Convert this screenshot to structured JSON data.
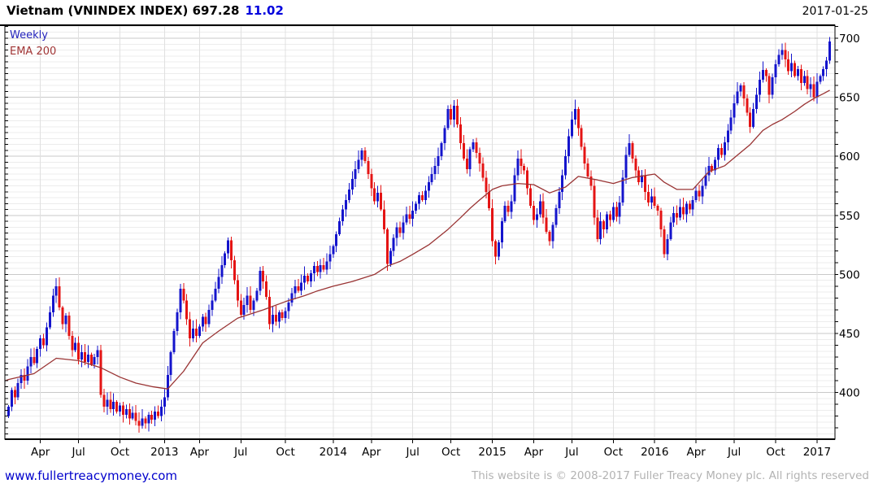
{
  "header": {
    "title": "Vietnam (VNINDEX INDEX) 697.28",
    "change": "11.02",
    "date": "2017-01-25"
  },
  "legend": {
    "series1": "Weekly",
    "series2": "EMA 200"
  },
  "footer": {
    "site": "www.fullertreacymoney.com",
    "copyright": "This website is © 2008-2017 Fuller Treacy Money plc. All rights reserved"
  },
  "colors": {
    "up": "#1414cc",
    "down": "#e41414",
    "ema": "#993333",
    "change_text": "#0000dd",
    "link": "#0000cc",
    "copyright_text": "#b3b3b3",
    "grid_major": "#c9c9c9",
    "grid_minor": "#ececec",
    "grid_vertical": "#e0e0e0",
    "border": "#000000"
  },
  "chart_data": {
    "type": "candlestick",
    "title": "Vietnam (VNINDEX INDEX)",
    "interval": "Weekly",
    "overlay": "EMA 200",
    "last_close": 697.28,
    "change": 11.02,
    "as_of": "2017-01-25",
    "y_axis": {
      "side": "right",
      "min": 360,
      "max": 710,
      "major_step": 50,
      "minor_step": 5,
      "ticks": [
        400,
        450,
        500,
        550,
        600,
        650,
        700
      ]
    },
    "x_axis": {
      "ticks": [
        {
          "label": "Apr",
          "week": 10
        },
        {
          "label": "Jul",
          "week": 22
        },
        {
          "label": "Oct",
          "week": 35
        },
        {
          "label": "2013",
          "week": 49
        },
        {
          "label": "Apr",
          "week": 60
        },
        {
          "label": "Jul",
          "week": 73
        },
        {
          "label": "Oct",
          "week": 87
        },
        {
          "label": "2014",
          "week": 102
        },
        {
          "label": "Apr",
          "week": 114
        },
        {
          "label": "Jul",
          "week": 127
        },
        {
          "label": "Oct",
          "week": 139
        },
        {
          "label": "2015",
          "week": 152
        },
        {
          "label": "Apr",
          "week": 165
        },
        {
          "label": "Jul",
          "week": 177
        },
        {
          "label": "Oct",
          "week": 190
        },
        {
          "label": "2016",
          "week": 203
        },
        {
          "label": "Apr",
          "week": 216
        },
        {
          "label": "Jul",
          "week": 228
        },
        {
          "label": "Oct",
          "week": 241
        },
        {
          "label": "2017",
          "week": 254
        }
      ]
    },
    "first_open": 380,
    "weekly_closes": [
      388,
      402,
      396,
      408,
      415,
      410,
      422,
      430,
      425,
      437,
      446,
      440,
      455,
      468,
      482,
      490,
      472,
      458,
      465,
      448,
      436,
      442,
      428,
      434,
      426,
      432,
      424,
      430,
      436,
      398,
      388,
      394,
      386,
      392,
      384,
      389,
      381,
      386,
      378,
      383,
      376,
      372,
      378,
      374,
      381,
      377,
      384,
      380,
      388,
      396,
      415,
      434,
      452,
      468,
      488,
      478,
      462,
      446,
      454,
      448,
      456,
      464,
      458,
      470,
      478,
      488,
      498,
      508,
      518,
      529,
      512,
      495,
      478,
      466,
      474,
      482,
      470,
      478,
      486,
      503,
      494,
      481,
      458,
      466,
      460,
      468,
      463,
      469,
      476,
      484,
      490,
      486,
      493,
      499,
      494,
      501,
      507,
      502,
      508,
      504,
      511,
      517,
      524,
      534,
      545,
      555,
      563,
      572,
      581,
      589,
      597,
      605,
      596,
      585,
      573,
      562,
      569,
      555,
      538,
      509,
      520,
      531,
      540,
      535,
      544,
      551,
      547,
      554,
      560,
      567,
      563,
      571,
      578,
      585,
      592,
      600,
      611,
      624,
      640,
      631,
      643,
      627,
      611,
      598,
      589,
      606,
      612,
      603,
      594,
      582,
      570,
      556,
      528,
      515,
      527,
      545,
      558,
      553,
      562,
      584,
      598,
      592,
      588,
      573,
      558,
      546,
      551,
      562,
      548,
      536,
      528,
      542,
      556,
      570,
      584,
      600,
      617,
      631,
      640,
      624,
      608,
      594,
      583,
      575,
      548,
      530,
      545,
      538,
      551,
      546,
      557,
      549,
      561,
      582,
      601,
      611,
      598,
      588,
      578,
      584,
      570,
      561,
      566,
      558,
      554,
      538,
      517,
      530,
      544,
      552,
      548,
      557,
      551,
      560,
      555,
      563,
      571,
      566,
      575,
      584,
      592,
      588,
      597,
      607,
      601,
      612,
      622,
      633,
      645,
      655,
      660,
      649,
      637,
      625,
      640,
      652,
      665,
      673,
      668,
      652,
      667,
      678,
      686,
      690,
      682,
      672,
      679,
      668,
      674,
      662,
      668,
      657,
      661,
      650,
      663,
      668,
      674,
      681,
      697.28
    ],
    "ema200": [
      [
        -1,
        410
      ],
      [
        0,
        411
      ],
      [
        8,
        416
      ],
      [
        15,
        429
      ],
      [
        22,
        427
      ],
      [
        29,
        421
      ],
      [
        35,
        413
      ],
      [
        40,
        408
      ],
      [
        45,
        405
      ],
      [
        50,
        403
      ],
      [
        55,
        418
      ],
      [
        61,
        442
      ],
      [
        66,
        452
      ],
      [
        72,
        463
      ],
      [
        80,
        470
      ],
      [
        87,
        477
      ],
      [
        93,
        482
      ],
      [
        97,
        486
      ],
      [
        102,
        490
      ],
      [
        108,
        494
      ],
      [
        115,
        500
      ],
      [
        119,
        507
      ],
      [
        123,
        511
      ],
      [
        127,
        517
      ],
      [
        132,
        525
      ],
      [
        138,
        538
      ],
      [
        142,
        548
      ],
      [
        145,
        556
      ],
      [
        148,
        563
      ],
      [
        152,
        572
      ],
      [
        155,
        575
      ],
      [
        160,
        577
      ],
      [
        165,
        576
      ],
      [
        170,
        569
      ],
      [
        175,
        574
      ],
      [
        179,
        583
      ],
      [
        185,
        580
      ],
      [
        190,
        577
      ],
      [
        196,
        582
      ],
      [
        203,
        585
      ],
      [
        206,
        578
      ],
      [
        210,
        572
      ],
      [
        215,
        572
      ],
      [
        220,
        587
      ],
      [
        225,
        592
      ],
      [
        229,
        601
      ],
      [
        233,
        610
      ],
      [
        237,
        622
      ],
      [
        240,
        627
      ],
      [
        243,
        631
      ],
      [
        247,
        638
      ],
      [
        250,
        644
      ],
      [
        253,
        649
      ],
      [
        256,
        653
      ],
      [
        258,
        656
      ]
    ]
  }
}
